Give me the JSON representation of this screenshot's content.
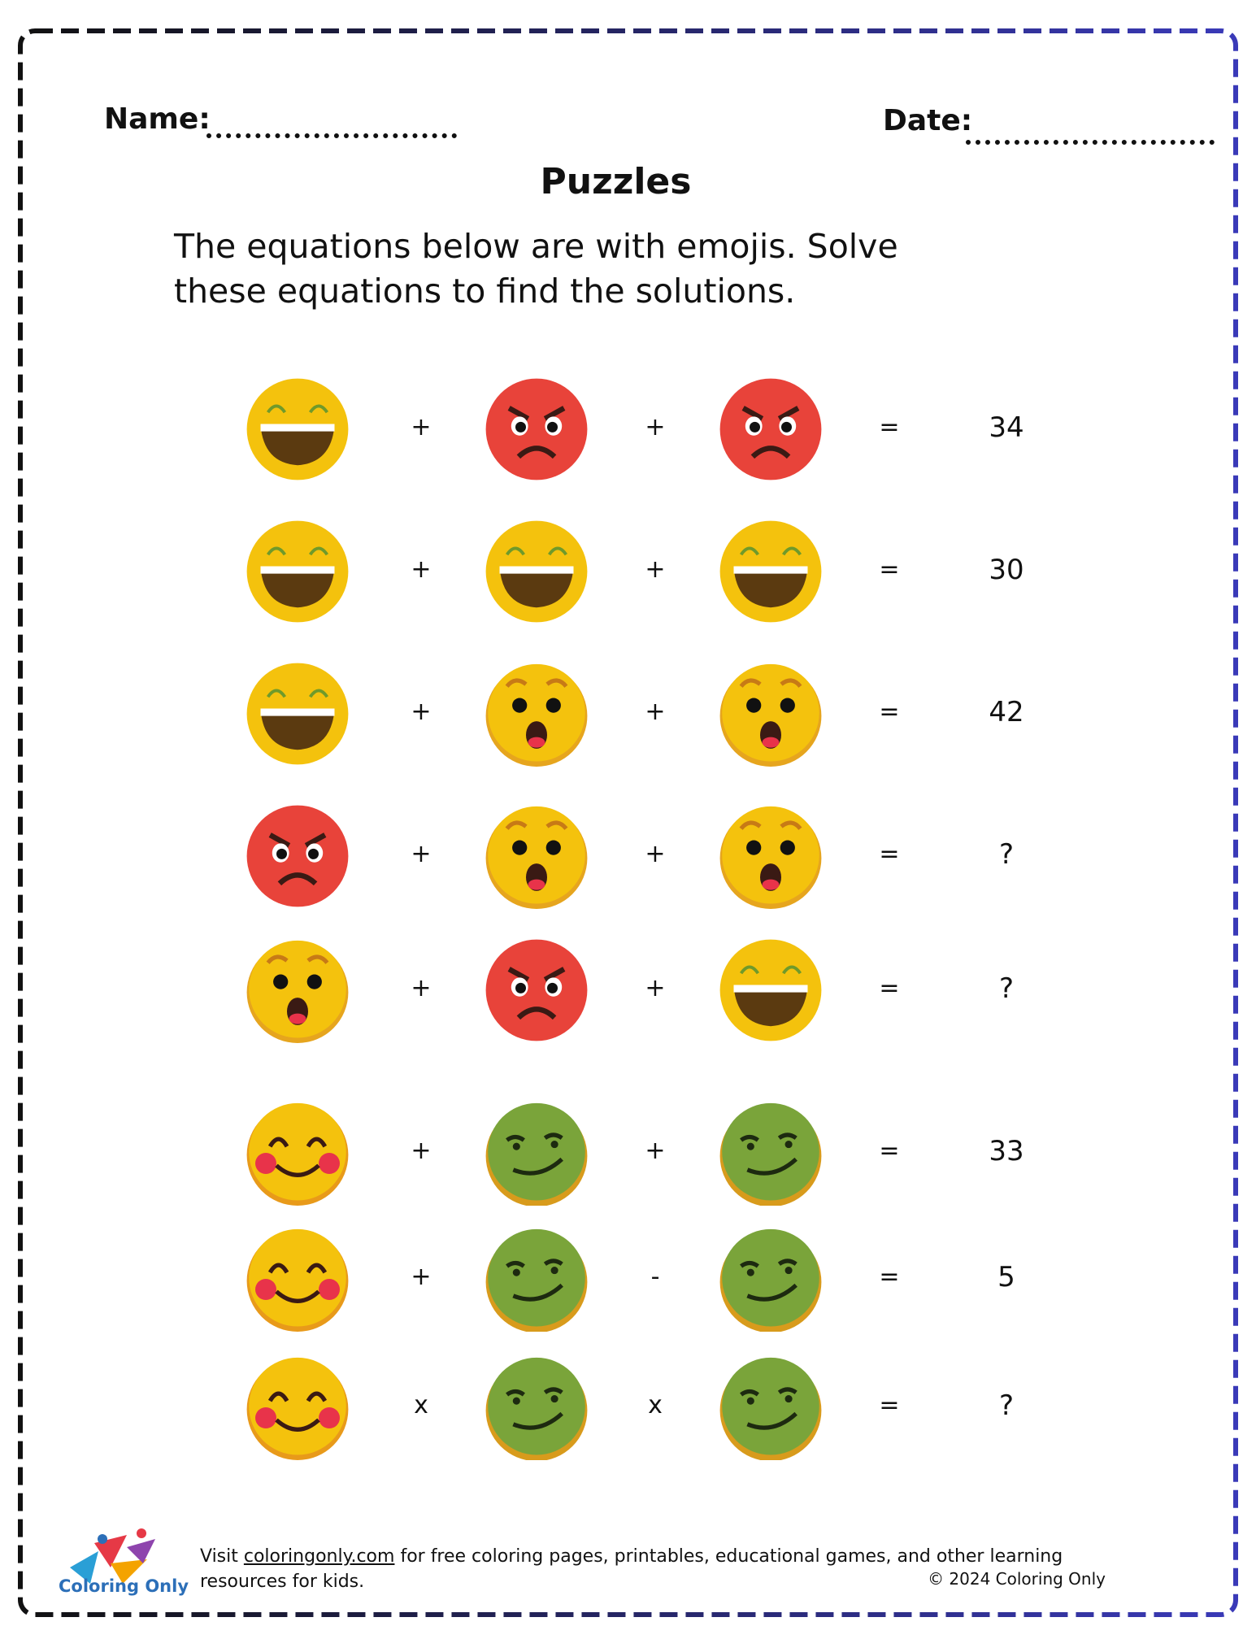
{
  "header": {
    "name_label": "Name:",
    "date_label": "Date:"
  },
  "title": "Puzzles",
  "instructions": "The equations below are with emojis. Solve these equations to find the solutions.",
  "emoji_types": {
    "laugh": "grinning-laugh-emoji",
    "angry": "angry-red-emoji",
    "surprised": "surprised-emoji",
    "blush": "blushing-smile-emoji",
    "smirk": "green-smirk-emoji"
  },
  "equations": [
    {
      "terms": [
        "laugh",
        "angry",
        "angry"
      ],
      "ops": [
        "+",
        "+"
      ],
      "equals": "=",
      "result": "34"
    },
    {
      "terms": [
        "laugh",
        "laugh",
        "laugh"
      ],
      "ops": [
        "+",
        "+"
      ],
      "equals": "=",
      "result": "30"
    },
    {
      "terms": [
        "laugh",
        "surprised",
        "surprised"
      ],
      "ops": [
        "+",
        "+"
      ],
      "equals": "=",
      "result": "42"
    },
    {
      "terms": [
        "angry",
        "surprised",
        "surprised"
      ],
      "ops": [
        "+",
        "+"
      ],
      "equals": "=",
      "result": "?"
    },
    {
      "terms": [
        "surprised",
        "angry",
        "laugh"
      ],
      "ops": [
        "+",
        "+"
      ],
      "equals": "=",
      "result": "?"
    },
    {
      "terms": [
        "blush",
        "smirk",
        "smirk"
      ],
      "ops": [
        "+",
        "+"
      ],
      "equals": "=",
      "result": "33"
    },
    {
      "terms": [
        "blush",
        "smirk",
        "smirk"
      ],
      "ops": [
        "+",
        "-"
      ],
      "equals": "=",
      "result": "5"
    },
    {
      "terms": [
        "blush",
        "smirk",
        "smirk"
      ],
      "ops": [
        "x",
        "x"
      ],
      "equals": "=",
      "result": "?"
    }
  ],
  "footer": {
    "visit": "Visit ",
    "link": "coloringonly.com",
    "rest": " for free coloring pages, printables, educational games, and other learning resources for kids.",
    "copyright": "© 2024 Coloring Only",
    "logo_text": "Coloring Only"
  },
  "colors": {
    "border_left": "#111111",
    "border_right": "#3a3ab8",
    "emoji_yellow": "#f4c20d",
    "emoji_red": "#e8433a",
    "emoji_green": "#7aa43a"
  }
}
